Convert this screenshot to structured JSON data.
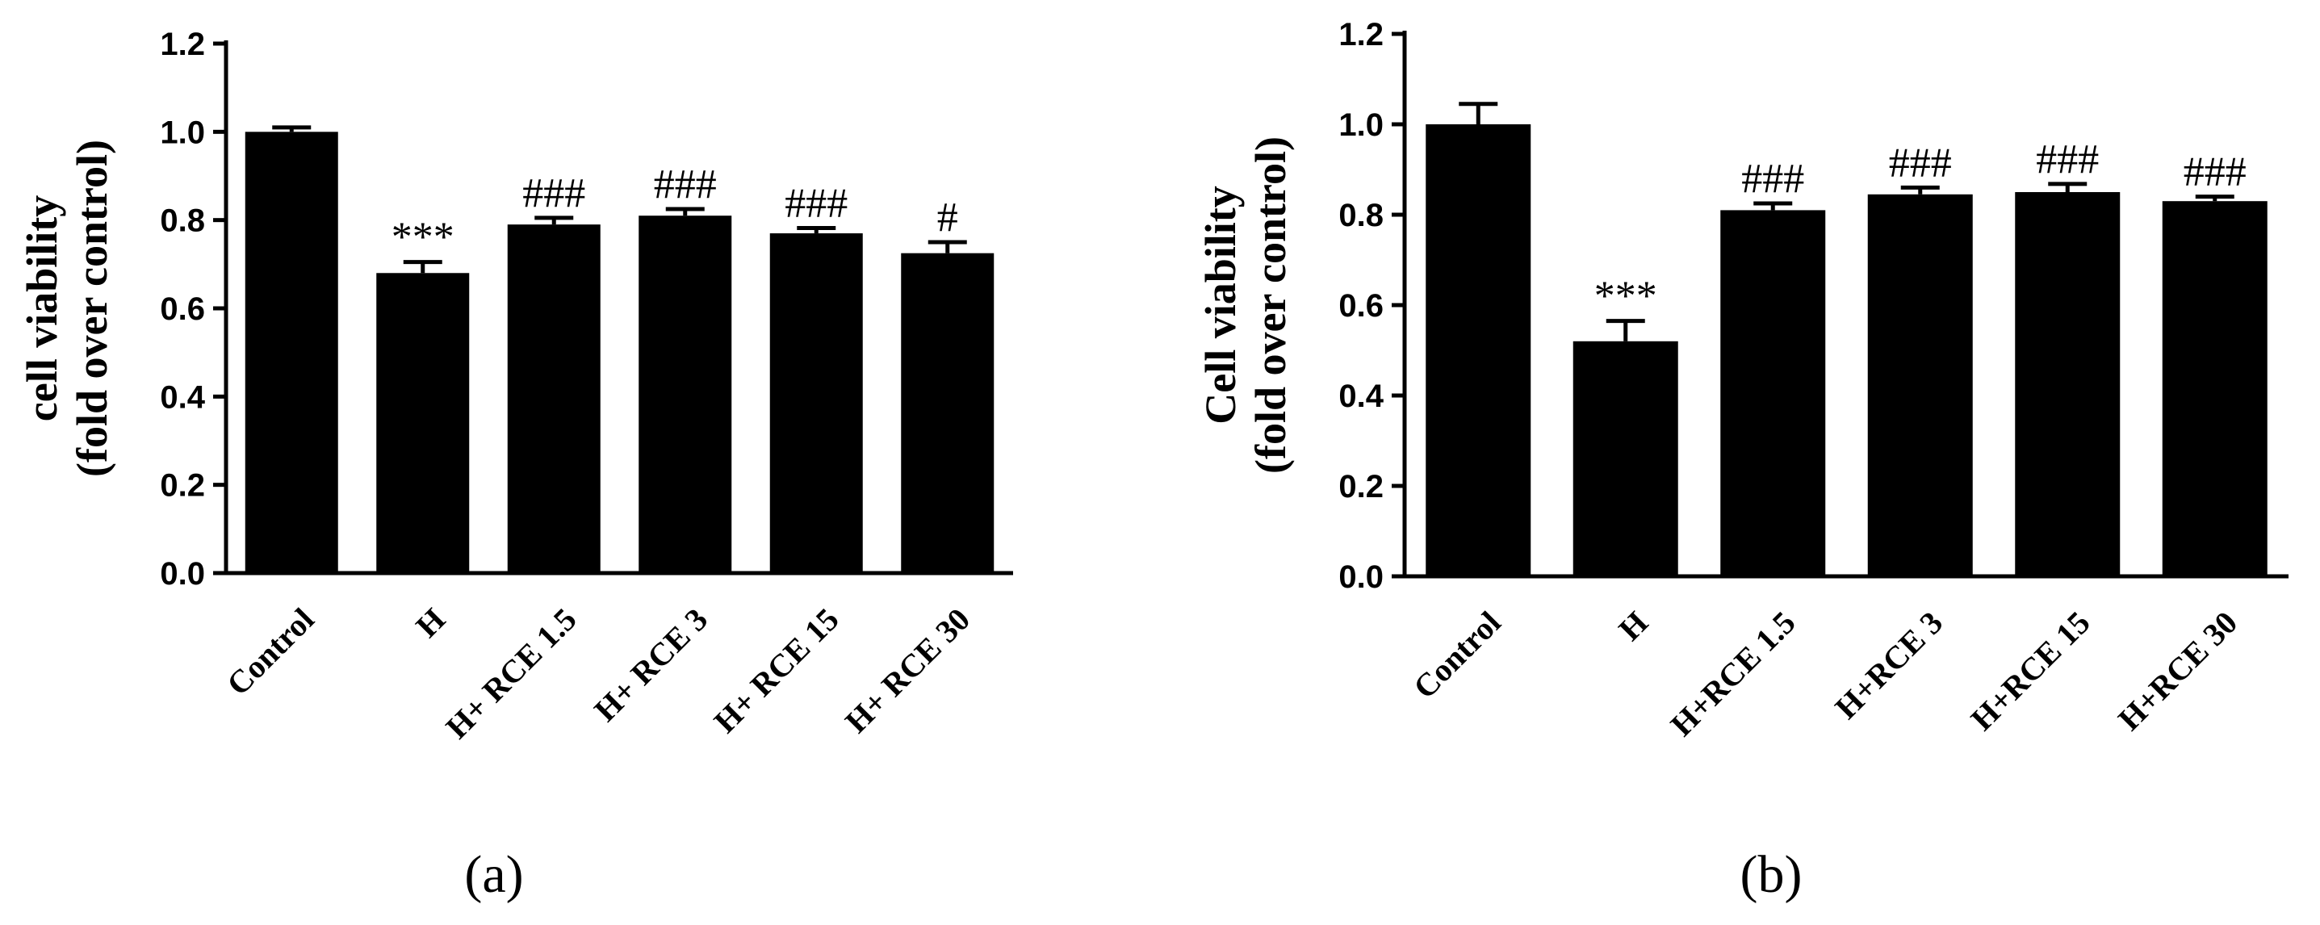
{
  "chart_data": [
    {
      "type": "bar",
      "panel_label": "(a)",
      "categories": [
        "Control",
        "H",
        "H+ RCE 1.5",
        "H+ RCE 3",
        "H+ RCE 15",
        "H+ RCE 30"
      ],
      "values": [
        1.0,
        0.68,
        0.79,
        0.81,
        0.77,
        0.725
      ],
      "errors": [
        0.01,
        0.025,
        0.015,
        0.015,
        0.012,
        0.025
      ],
      "annotations": [
        "",
        "***",
        "###",
        "###",
        "###",
        "#"
      ],
      "ylabel_lines": [
        "cell viability",
        "(fold over control)"
      ],
      "ylim": [
        0,
        1.2
      ],
      "yticks": [
        "0.0",
        "0.2",
        "0.4",
        "0.6",
        "0.8",
        "1.0",
        "1.2"
      ],
      "grid": false
    },
    {
      "type": "bar",
      "panel_label": "(b)",
      "categories": [
        "Control",
        "H",
        "H+RCE 1.5",
        "H+RCE 3",
        "H+RCE 15",
        "H+RCE 30"
      ],
      "values": [
        1.0,
        0.52,
        0.81,
        0.845,
        0.85,
        0.83
      ],
      "errors": [
        0.045,
        0.045,
        0.015,
        0.015,
        0.018,
        0.01
      ],
      "annotations": [
        "",
        "***",
        "###",
        "###",
        "###",
        "###"
      ],
      "ylabel_lines": [
        "Cell viability",
        "(fold over control)"
      ],
      "ylim": [
        0,
        1.2
      ],
      "yticks": [
        "0.0",
        "0.2",
        "0.4",
        "0.6",
        "0.8",
        "1.0",
        "1.2"
      ],
      "grid": false
    }
  ]
}
